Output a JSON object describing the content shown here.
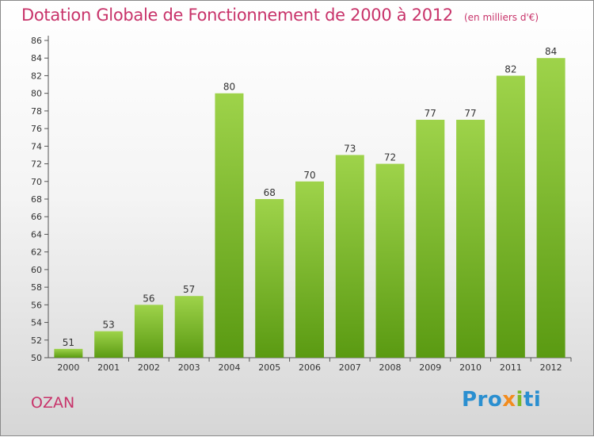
{
  "header": {
    "title": "Dotation Globale de Fonctionnement de 2000 à 2012",
    "unit": "(en milliers d'€)"
  },
  "commune": "OZAN",
  "logo": {
    "text": "Proxiti",
    "parts": [
      "Pro",
      "x",
      "i",
      "ti"
    ]
  },
  "colors": {
    "title": "#c8336a",
    "bar_top": "#9ed34a",
    "bar_bottom": "#5a9a12",
    "axis": "#555555"
  },
  "chart_data": {
    "type": "bar",
    "categories": [
      "2000",
      "2001",
      "2002",
      "2003",
      "2004",
      "2005",
      "2006",
      "2007",
      "2008",
      "2009",
      "2010",
      "2011",
      "2012"
    ],
    "values": [
      51,
      53,
      56,
      57,
      80,
      68,
      70,
      73,
      72,
      77,
      77,
      82,
      84
    ],
    "title": "Dotation Globale de Fonctionnement de 2000 à 2012",
    "ylim": [
      50,
      86
    ],
    "yticks": [
      50,
      52,
      54,
      56,
      58,
      60,
      62,
      64,
      66,
      68,
      70,
      72,
      74,
      76,
      78,
      80,
      82,
      84,
      86
    ],
    "grid": false,
    "data_labels": true
  }
}
